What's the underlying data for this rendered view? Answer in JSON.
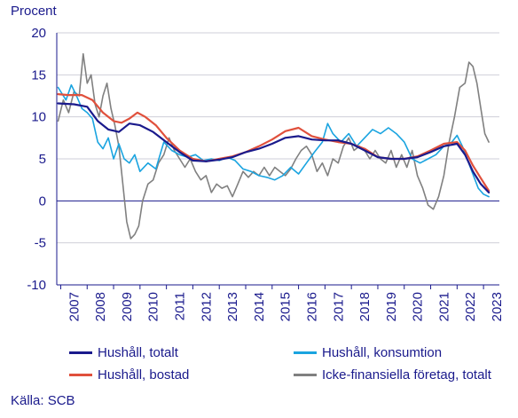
{
  "chart_data": {
    "type": "line",
    "title": "",
    "ylabel": "Procent",
    "xlabel": "",
    "ylim": [
      -10,
      20
    ],
    "yticks": [
      -10,
      -5,
      0,
      5,
      10,
      15,
      20
    ],
    "xlim": [
      2006.85,
      2023.6
    ],
    "xticks": [
      "2007",
      "2008",
      "2009",
      "2010",
      "2011",
      "2012",
      "2013",
      "2014",
      "2015",
      "2016",
      "2017",
      "2018",
      "2019",
      "2020",
      "2021",
      "2022",
      "2023"
    ],
    "grid": "horizontal",
    "legend_position": "bottom",
    "source": "Källa: SCB",
    "series": [
      {
        "name": "Hushåll, totalt",
        "color": "#1a1a8c",
        "points": [
          [
            2006.9,
            11.6
          ],
          [
            2007.5,
            11.5
          ],
          [
            2008.0,
            11.2
          ],
          [
            2008.4,
            9.5
          ],
          [
            2008.8,
            8.5
          ],
          [
            2009.2,
            8.2
          ],
          [
            2009.6,
            9.2
          ],
          [
            2010.0,
            9.0
          ],
          [
            2010.5,
            8.2
          ],
          [
            2011.0,
            7.0
          ],
          [
            2011.5,
            5.8
          ],
          [
            2012.0,
            4.8
          ],
          [
            2012.5,
            4.7
          ],
          [
            2013.0,
            4.9
          ],
          [
            2013.5,
            5.2
          ],
          [
            2014.0,
            5.8
          ],
          [
            2014.5,
            6.2
          ],
          [
            2015.0,
            6.8
          ],
          [
            2015.5,
            7.5
          ],
          [
            2016.0,
            7.7
          ],
          [
            2016.5,
            7.3
          ],
          [
            2017.0,
            7.2
          ],
          [
            2017.5,
            7.2
          ],
          [
            2018.0,
            6.8
          ],
          [
            2018.5,
            6.0
          ],
          [
            2019.0,
            5.2
          ],
          [
            2019.5,
            5.0
          ],
          [
            2020.0,
            5.0
          ],
          [
            2020.5,
            5.2
          ],
          [
            2021.0,
            5.8
          ],
          [
            2021.5,
            6.5
          ],
          [
            2022.0,
            6.8
          ],
          [
            2022.3,
            5.5
          ],
          [
            2022.6,
            3.5
          ],
          [
            2022.9,
            2.0
          ],
          [
            2023.2,
            1.0
          ]
        ]
      },
      {
        "name": "Hushåll, konsumtion",
        "color": "#1aa4e0",
        "points": [
          [
            2006.9,
            13.5
          ],
          [
            2007.2,
            12.0
          ],
          [
            2007.4,
            13.8
          ],
          [
            2007.6,
            12.5
          ],
          [
            2007.8,
            11.0
          ],
          [
            2008.0,
            10.5
          ],
          [
            2008.2,
            9.8
          ],
          [
            2008.4,
            7.0
          ],
          [
            2008.6,
            6.2
          ],
          [
            2008.8,
            7.5
          ],
          [
            2009.0,
            5.0
          ],
          [
            2009.2,
            6.8
          ],
          [
            2009.4,
            5.0
          ],
          [
            2009.6,
            4.5
          ],
          [
            2009.8,
            5.5
          ],
          [
            2010.0,
            3.5
          ],
          [
            2010.3,
            4.5
          ],
          [
            2010.6,
            3.8
          ],
          [
            2010.9,
            7.0
          ],
          [
            2011.2,
            6.0
          ],
          [
            2011.5,
            5.5
          ],
          [
            2011.8,
            5.2
          ],
          [
            2012.1,
            5.5
          ],
          [
            2012.4,
            4.8
          ],
          [
            2012.7,
            5.0
          ],
          [
            2013.0,
            4.8
          ],
          [
            2013.3,
            5.2
          ],
          [
            2013.6,
            4.8
          ],
          [
            2013.9,
            3.8
          ],
          [
            2014.2,
            3.5
          ],
          [
            2014.5,
            3.0
          ],
          [
            2014.8,
            2.8
          ],
          [
            2015.1,
            2.5
          ],
          [
            2015.4,
            3.0
          ],
          [
            2015.7,
            4.0
          ],
          [
            2016.0,
            3.2
          ],
          [
            2016.3,
            4.5
          ],
          [
            2016.6,
            5.8
          ],
          [
            2016.9,
            7.0
          ],
          [
            2017.1,
            9.2
          ],
          [
            2017.3,
            8.0
          ],
          [
            2017.6,
            7.0
          ],
          [
            2017.9,
            8.0
          ],
          [
            2018.2,
            6.5
          ],
          [
            2018.5,
            7.5
          ],
          [
            2018.8,
            8.5
          ],
          [
            2019.1,
            8.0
          ],
          [
            2019.4,
            8.7
          ],
          [
            2019.7,
            8.0
          ],
          [
            2020.0,
            7.0
          ],
          [
            2020.3,
            5.0
          ],
          [
            2020.6,
            4.5
          ],
          [
            2020.9,
            5.0
          ],
          [
            2021.2,
            5.5
          ],
          [
            2021.5,
            6.5
          ],
          [
            2021.8,
            7.0
          ],
          [
            2022.0,
            7.8
          ],
          [
            2022.2,
            6.5
          ],
          [
            2022.5,
            4.0
          ],
          [
            2022.8,
            1.5
          ],
          [
            2023.0,
            0.8
          ],
          [
            2023.2,
            0.5
          ]
        ]
      },
      {
        "name": "Hushåll, bostad",
        "color": "#e0503c",
        "points": [
          [
            2006.9,
            12.7
          ],
          [
            2007.3,
            12.6
          ],
          [
            2007.8,
            12.6
          ],
          [
            2008.2,
            12.0
          ],
          [
            2008.6,
            10.5
          ],
          [
            2009.0,
            9.5
          ],
          [
            2009.3,
            9.3
          ],
          [
            2009.6,
            9.8
          ],
          [
            2009.9,
            10.5
          ],
          [
            2010.2,
            10.0
          ],
          [
            2010.6,
            9.0
          ],
          [
            2011.0,
            7.5
          ],
          [
            2011.5,
            6.0
          ],
          [
            2012.0,
            5.0
          ],
          [
            2012.5,
            4.7
          ],
          [
            2013.0,
            5.0
          ],
          [
            2013.5,
            5.3
          ],
          [
            2014.0,
            5.8
          ],
          [
            2014.5,
            6.5
          ],
          [
            2015.0,
            7.3
          ],
          [
            2015.5,
            8.3
          ],
          [
            2016.0,
            8.7
          ],
          [
            2016.5,
            7.7
          ],
          [
            2017.0,
            7.3
          ],
          [
            2017.5,
            7.0
          ],
          [
            2018.0,
            6.8
          ],
          [
            2018.5,
            6.2
          ],
          [
            2019.0,
            5.2
          ],
          [
            2019.5,
            5.0
          ],
          [
            2020.0,
            5.0
          ],
          [
            2020.5,
            5.3
          ],
          [
            2021.0,
            6.0
          ],
          [
            2021.5,
            6.8
          ],
          [
            2022.0,
            7.0
          ],
          [
            2022.3,
            6.0
          ],
          [
            2022.6,
            4.2
          ],
          [
            2022.9,
            2.7
          ],
          [
            2023.2,
            1.2
          ]
        ]
      },
      {
        "name": "Icke-finansiella företag, totalt",
        "color": "#808080",
        "points": [
          [
            2006.9,
            9.5
          ],
          [
            2007.1,
            12.0
          ],
          [
            2007.3,
            10.5
          ],
          [
            2007.5,
            13.0
          ],
          [
            2007.7,
            12.5
          ],
          [
            2007.85,
            17.5
          ],
          [
            2008.0,
            14.0
          ],
          [
            2008.15,
            15.0
          ],
          [
            2008.3,
            11.5
          ],
          [
            2008.45,
            10.0
          ],
          [
            2008.6,
            12.5
          ],
          [
            2008.75,
            14.0
          ],
          [
            2008.9,
            11.0
          ],
          [
            2009.05,
            9.0
          ],
          [
            2009.2,
            6.5
          ],
          [
            2009.35,
            2.0
          ],
          [
            2009.5,
            -2.5
          ],
          [
            2009.65,
            -4.5
          ],
          [
            2009.8,
            -4.0
          ],
          [
            2009.95,
            -3.0
          ],
          [
            2010.1,
            0.0
          ],
          [
            2010.3,
            2.0
          ],
          [
            2010.5,
            2.5
          ],
          [
            2010.7,
            4.5
          ],
          [
            2010.9,
            5.5
          ],
          [
            2011.1,
            7.5
          ],
          [
            2011.3,
            6.0
          ],
          [
            2011.5,
            5.0
          ],
          [
            2011.7,
            4.0
          ],
          [
            2011.9,
            5.0
          ],
          [
            2012.1,
            3.5
          ],
          [
            2012.3,
            2.5
          ],
          [
            2012.5,
            3.0
          ],
          [
            2012.7,
            1.0
          ],
          [
            2012.9,
            2.0
          ],
          [
            2013.1,
            1.5
          ],
          [
            2013.3,
            1.8
          ],
          [
            2013.5,
            0.5
          ],
          [
            2013.7,
            2.0
          ],
          [
            2013.9,
            3.5
          ],
          [
            2014.1,
            2.8
          ],
          [
            2014.3,
            3.5
          ],
          [
            2014.5,
            3.0
          ],
          [
            2014.7,
            4.0
          ],
          [
            2014.9,
            3.0
          ],
          [
            2015.1,
            4.0
          ],
          [
            2015.3,
            3.5
          ],
          [
            2015.5,
            3.0
          ],
          [
            2015.7,
            3.8
          ],
          [
            2015.9,
            5.0
          ],
          [
            2016.1,
            6.0
          ],
          [
            2016.3,
            6.5
          ],
          [
            2016.5,
            5.5
          ],
          [
            2016.7,
            3.5
          ],
          [
            2016.9,
            4.5
          ],
          [
            2017.1,
            3.0
          ],
          [
            2017.3,
            5.0
          ],
          [
            2017.5,
            4.5
          ],
          [
            2017.7,
            6.5
          ],
          [
            2017.9,
            7.5
          ],
          [
            2018.1,
            6.0
          ],
          [
            2018.3,
            6.5
          ],
          [
            2018.5,
            6.0
          ],
          [
            2018.7,
            5.0
          ],
          [
            2018.9,
            6.0
          ],
          [
            2019.1,
            5.0
          ],
          [
            2019.3,
            4.5
          ],
          [
            2019.5,
            6.0
          ],
          [
            2019.7,
            4.0
          ],
          [
            2019.9,
            5.5
          ],
          [
            2020.1,
            4.0
          ],
          [
            2020.3,
            6.0
          ],
          [
            2020.5,
            3.0
          ],
          [
            2020.7,
            1.5
          ],
          [
            2020.9,
            -0.5
          ],
          [
            2021.1,
            -1.0
          ],
          [
            2021.3,
            0.5
          ],
          [
            2021.5,
            3.0
          ],
          [
            2021.7,
            7.0
          ],
          [
            2021.9,
            10.0
          ],
          [
            2022.1,
            13.5
          ],
          [
            2022.3,
            14.0
          ],
          [
            2022.45,
            16.5
          ],
          [
            2022.6,
            16.0
          ],
          [
            2022.75,
            14.0
          ],
          [
            2022.9,
            11.0
          ],
          [
            2023.05,
            8.0
          ],
          [
            2023.2,
            7.0
          ]
        ]
      }
    ]
  }
}
